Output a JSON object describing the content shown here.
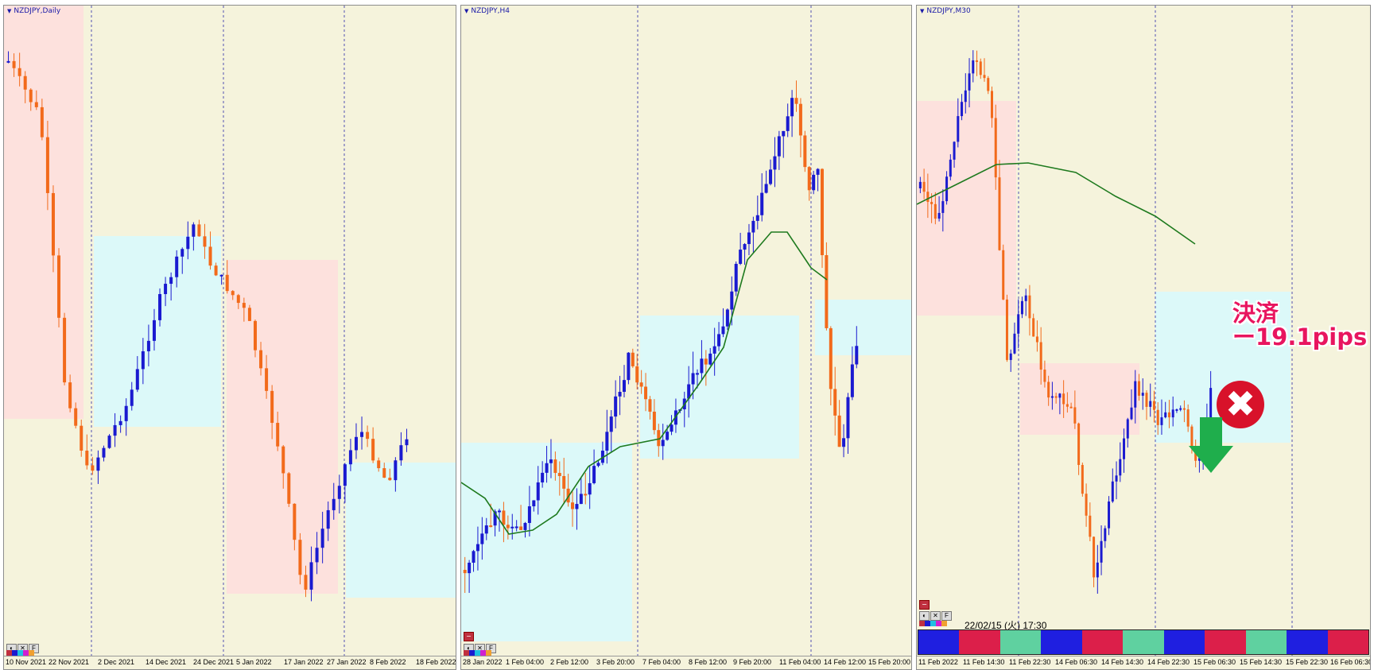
{
  "panels": [
    {
      "id": "daily",
      "title": "NZDJPY,Daily",
      "x_labels": [
        "10 Nov 2021",
        "22 Nov 2021",
        "2 Dec 2021",
        "14 Dec 2021",
        "24 Dec 2021",
        "5 Jan 2022",
        "17 Jan 2022",
        "27 Jan 2022",
        "8 Feb 2022",
        "18 Feb 2022"
      ]
    },
    {
      "id": "h4",
      "title": "NZDJPY,H4",
      "x_labels": [
        "28 Jan 2022",
        "1 Feb 04:00",
        "2 Feb 12:00",
        "3 Feb 20:00",
        "7 Feb 04:00",
        "8 Feb 12:00",
        "9 Feb 20:00",
        "11 Feb 04:00",
        "14 Feb 12:00",
        "15 Feb 20:00"
      ]
    },
    {
      "id": "m30",
      "title": "NZDJPY,M30",
      "x_labels": [
        "11 Feb 2022",
        "11 Feb 14:30",
        "11 Feb 22:30",
        "14 Feb 06:30",
        "14 Feb 14:30",
        "14 Feb 22:30",
        "15 Feb 06:30",
        "15 Feb 14:30",
        "15 Feb 22:30",
        "16 Feb 06:30"
      ],
      "datetime": "22/02/15 (火) 17:30",
      "note_line1": "決済",
      "note_line2": "ー19.1pips",
      "close_badge": "✖",
      "strip_colors": [
        "#1f1fe0",
        "#dc1f4a",
        "#5fd1a0",
        "#1f1fe0",
        "#dc1f4a",
        "#5fd1a0",
        "#1f1fe0",
        "#dc1f4a",
        "#5fd1a0",
        "#1f1fe0",
        "#dc1f4a"
      ]
    }
  ],
  "toolbar": {
    "tool1": "◐",
    "tool2": "✕",
    "tool3": "F",
    "minimize": "−"
  },
  "colors": {
    "bg": "#f5f3dc",
    "bull": "#1a1ad0",
    "bear": "#f26a1b",
    "ma": "#1e7a1e",
    "pink_zone": "#fde1dd",
    "cyan_zone": "#dcf9f9",
    "grid": "#2a2aa8",
    "accent": "#e8155f",
    "down_arrow": "#1fae4c"
  }
}
